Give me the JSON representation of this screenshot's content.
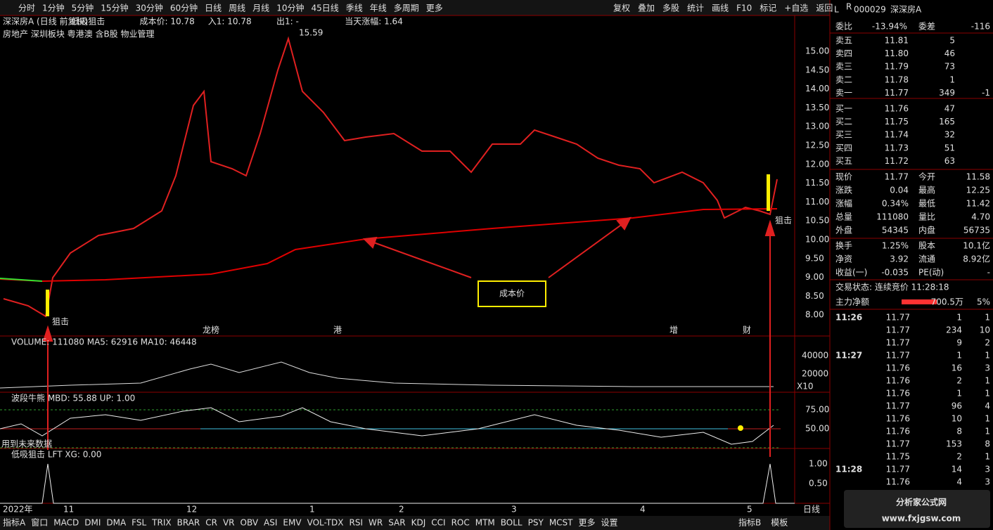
{
  "toolbar": {
    "periods": [
      "分时",
      "1分钟",
      "5分钟",
      "15分钟",
      "30分钟",
      "60分钟",
      "日线",
      "周线",
      "月线",
      "10分钟",
      "45日线",
      "季线",
      "年线",
      "多周期",
      "更多"
    ],
    "active": "日线",
    "actions": [
      "复权",
      "叠加",
      "多股",
      "统计",
      "画线",
      "F10",
      "标记",
      "+自选",
      "返回"
    ]
  },
  "main": {
    "legend": [
      {
        "text": "深深房A (日线 前复权)",
        "color": "#e0e0e0"
      },
      {
        "text": "低吸狙击",
        "color": "#e0e0e0"
      },
      {
        "text": "成本价: 10.78",
        "color": "#ff40ff"
      },
      {
        "text": "入1: 10.78",
        "color": "#ff3232"
      },
      {
        "text": "出1: -",
        "color": "#00e600"
      },
      {
        "text": "当天涨幅: 1.64",
        "color": "#00e600"
      }
    ],
    "sectors": "房地产 深圳板块 粤港澳 含B股 物业管理",
    "price_ticks": [
      "15.00",
      "14.50",
      "14.00",
      "13.50",
      "13.00",
      "12.50",
      "12.00",
      "11.50",
      "11.00",
      "10.50",
      "10.00",
      "9.50",
      "9.00",
      "8.50",
      "8.00"
    ],
    "high_label": "15.59",
    "signal": "狙击",
    "callout": "成本价",
    "markers": [
      "龙榜",
      "港",
      "增",
      "财"
    ]
  },
  "volume": {
    "legend": "VOLUME: 111080 MA5: 62916 MA10: 46448",
    "ticks": [
      "40000",
      "20000"
    ],
    "unit": "X10"
  },
  "mbd": {
    "legend": "波段牛熊 MBD: 55.88 UP: 1.00",
    "ticks": [
      "75.00",
      "50.00"
    ],
    "note": "用到未来数据"
  },
  "lft": {
    "legend": "低吸狙击 LFT XG: 0.00",
    "ticks": [
      "1.00",
      "0.50"
    ]
  },
  "xaxis": {
    "labels": [
      "2022年",
      "11",
      "12",
      "1",
      "2",
      "3",
      "4",
      "5"
    ],
    "period": "日线"
  },
  "tabs": {
    "left": [
      "指标A",
      "窗口",
      "MACD",
      "DMI",
      "DMA",
      "FSL",
      "TRIX",
      "BRAR",
      "CR",
      "VR",
      "OBV",
      "ASI",
      "EMV",
      "VOL-TDX",
      "RSI",
      "WR",
      "SAR",
      "KDJ",
      "CCI",
      "ROC",
      "MTM",
      "BOLL",
      "PSY",
      "MCST",
      "更多",
      "设置"
    ],
    "right": [
      "指标B",
      "模板"
    ]
  },
  "quote": {
    "flags": [
      "L",
      "R"
    ],
    "code": "000029",
    "name": "深深房A",
    "ratio": [
      {
        "label": "委比",
        "value": "-13.94%"
      },
      {
        "label": "委差",
        "value": "-116"
      }
    ],
    "book": [
      {
        "label": "卖五",
        "price": "11.81",
        "volume": "5",
        "change": null,
        "color": "#ff3232"
      },
      {
        "label": "卖四",
        "price": "11.80",
        "volume": "46",
        "change": null,
        "color": "#ff3232"
      },
      {
        "label": "卖三",
        "price": "11.79",
        "volume": "73",
        "change": null,
        "color": "#ff3232"
      },
      {
        "label": "卖二",
        "price": "11.78",
        "volume": "1",
        "change": null,
        "color": "#ff3232"
      },
      {
        "label": "卖一",
        "price": "11.77",
        "volume": "349",
        "change": "-1",
        "color": "#ff3232"
      },
      {
        "label": "买一",
        "price": "11.76",
        "volume": "47",
        "change": null,
        "color": "#ff3232"
      },
      {
        "label": "买二",
        "price": "11.75",
        "volume": "165",
        "change": null,
        "color": "#ff3232"
      },
      {
        "label": "买三",
        "price": "11.74",
        "volume": "32",
        "change": null,
        "color": "#ff3232"
      },
      {
        "label": "买四",
        "price": "11.73",
        "volume": "51",
        "change": null,
        "color": "#e0e0e0"
      },
      {
        "label": "买五",
        "price": "11.72",
        "volume": "63",
        "change": null,
        "color": "#00e600"
      }
    ],
    "stats": [
      [
        {
          "label": "现价",
          "value": "11.77",
          "color": "#ff3232"
        },
        {
          "label": "今开",
          "value": "11.58",
          "color": "#00e600"
        }
      ],
      [
        {
          "label": "涨跌",
          "value": "0.04",
          "color": "#ff3232"
        },
        {
          "label": "最高",
          "value": "12.25",
          "color": "#ff3232"
        }
      ],
      [
        {
          "label": "涨幅",
          "value": "0.34%",
          "color": "#ff3232"
        },
        {
          "label": "最低",
          "value": "11.42",
          "color": "#00e600"
        }
      ],
      [
        {
          "label": "总量",
          "value": "111080",
          "color": "#e0e0e0"
        },
        {
          "label": "量比",
          "value": "4.70",
          "color": "#ff40ff"
        }
      ],
      [
        {
          "label": "外盘",
          "value": "54345",
          "color": "#ff3232"
        },
        {
          "label": "内盘",
          "value": "56735",
          "color": "#00e600"
        }
      ],
      [
        {
          "label": "换手",
          "value": "1.25%",
          "color": "#e0e0e0"
        },
        {
          "label": "股本",
          "value": "10.1亿",
          "color": "#e0e0e0"
        }
      ],
      [
        {
          "label": "净资",
          "value": "3.92",
          "color": "#e0e0e0"
        },
        {
          "label": "流通",
          "value": "8.92亿",
          "color": "#e0e0e0"
        }
      ],
      [
        {
          "label": "收益(一)",
          "value": "-0.035",
          "color": "#e0e0e0"
        },
        {
          "label": "PE(动)",
          "value": "-",
          "color": "#e0e0e0"
        }
      ]
    ],
    "status": "交易状态: 连续竞价 11:28:18",
    "flow": {
      "label": "主力净额",
      "value": "700.5万",
      "pct": "5%"
    },
    "ticks": [
      {
        "time": "11:26",
        "price": "11.77",
        "volume": "1",
        "count": "1",
        "color": "#ff3232"
      },
      {
        "time": null,
        "price": "11.77",
        "volume": "234",
        "count": "10",
        "color": "#00e600"
      },
      {
        "time": null,
        "price": "11.77",
        "volume": "9",
        "count": "2",
        "color": "#ff3232"
      },
      {
        "time": "11:27",
        "price": "11.77",
        "volume": "1",
        "count": "1",
        "color": "#ff3232"
      },
      {
        "time": null,
        "price": "11.76",
        "volume": "16",
        "count": "3",
        "color": "#00e600"
      },
      {
        "time": null,
        "price": "11.76",
        "volume": "2",
        "count": "1",
        "color": "#00e600"
      },
      {
        "time": null,
        "price": "11.76",
        "volume": "1",
        "count": "1",
        "color": "#00e600"
      },
      {
        "time": null,
        "price": "11.77",
        "volume": "96",
        "count": "4",
        "color": "#ff3232"
      },
      {
        "time": null,
        "price": "11.76",
        "volume": "10",
        "count": "1",
        "color": "#00e600"
      },
      {
        "time": null,
        "price": "11.76",
        "volume": "8",
        "count": "1",
        "color": "#00e600"
      },
      {
        "time": null,
        "price": "11.77",
        "volume": "153",
        "count": "8",
        "color": "#ff3232"
      },
      {
        "time": null,
        "price": "11.75",
        "volume": "2",
        "count": "1",
        "color": "#00e600"
      },
      {
        "time": "11:28",
        "price": "11.77",
        "volume": "14",
        "count": "3",
        "color": "#ff3232"
      },
      {
        "time": null,
        "price": "11.76",
        "volume": "4",
        "count": "3",
        "color": "#00e600"
      }
    ]
  },
  "watermark": {
    "title": "分析家公式网",
    "url": "www.fxjgsw.com"
  }
}
